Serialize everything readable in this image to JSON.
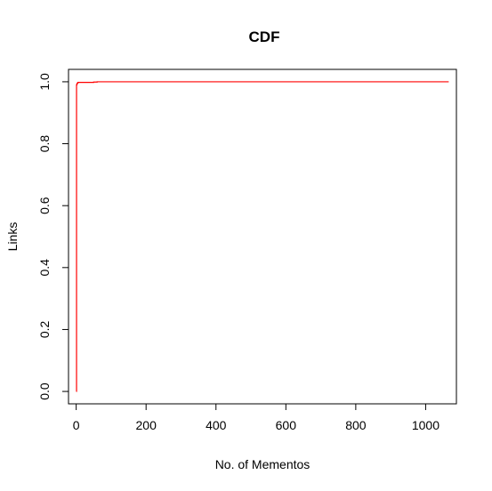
{
  "chart_data": {
    "type": "line",
    "title": "CDF",
    "xlabel": "No. of Mementos",
    "ylabel": "Links",
    "xlim": [
      -22,
      1088
    ],
    "ylim": [
      -0.04,
      1.04
    ],
    "xticks": [
      0,
      200,
      400,
      600,
      800,
      1000
    ],
    "xtick_labels": [
      "0",
      "200",
      "400",
      "600",
      "800",
      "1000"
    ],
    "yticks": [
      0.0,
      0.2,
      0.4,
      0.6,
      0.8,
      1.0
    ],
    "ytick_labels": [
      "0.0",
      "0.2",
      "0.4",
      "0.6",
      "0.8",
      "1.0"
    ],
    "grid": false,
    "legend": "none",
    "series": [
      {
        "color": "#ff0000",
        "step": true,
        "x": [
          0,
          1,
          2,
          3,
          5,
          50,
          60,
          1066
        ],
        "y": [
          0,
          0.99,
          0.993,
          0.996,
          0.998,
          0.999,
          1.0,
          1.0
        ]
      }
    ]
  }
}
